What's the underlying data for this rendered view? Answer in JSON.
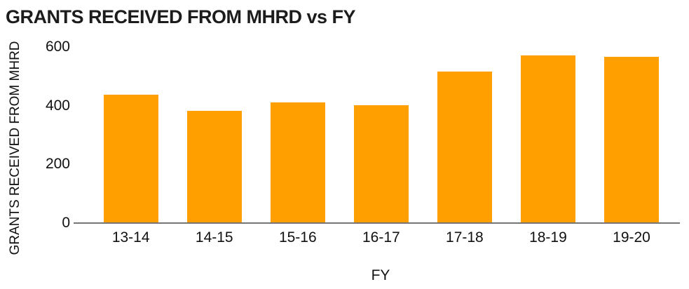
{
  "colors": {
    "bar": "#FFA000",
    "axis_line": "#767676",
    "text": "#111111",
    "title_text": "#1c1c1c",
    "background": "#ffffff"
  },
  "chart_data": {
    "type": "bar",
    "title": "GRANTS RECEIVED FROM MHRD vs FY",
    "xlabel": "FY",
    "ylabel": "GRANTS RECEIVED FROM MHRD",
    "categories": [
      "13-14",
      "14-15",
      "15-16",
      "16-17",
      "17-18",
      "18-19",
      "19-20"
    ],
    "values": [
      440,
      385,
      415,
      405,
      520,
      575,
      570
    ],
    "yticks": [
      0,
      200,
      400,
      600
    ],
    "ylim": [
      0,
      600
    ],
    "grid": false,
    "legend": "none",
    "bar_color": "#FFA000",
    "series_name": "GRANTS RECEIVED FROM MHRD"
  }
}
